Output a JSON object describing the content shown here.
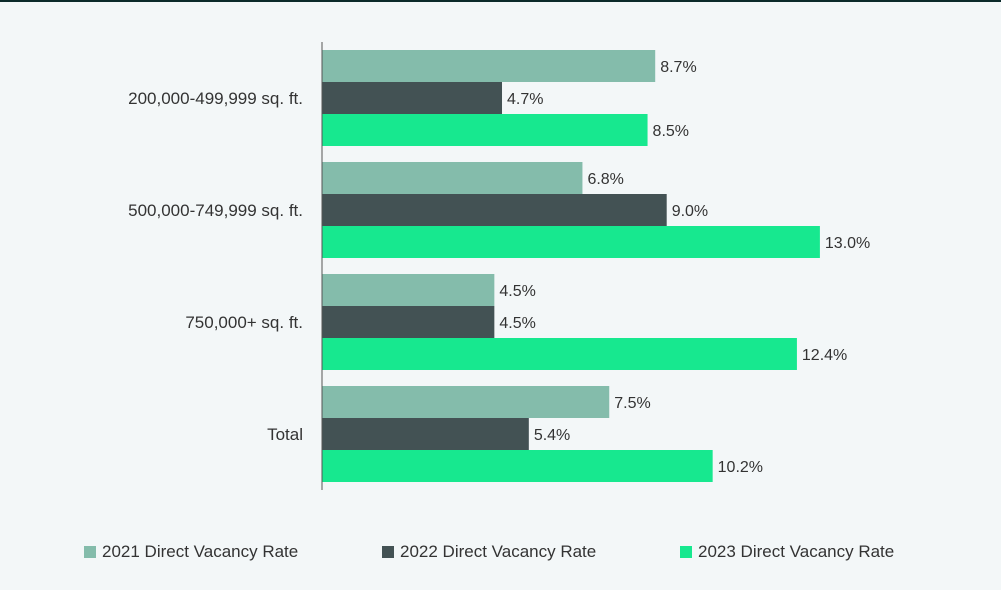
{
  "chart_data": {
    "type": "bar",
    "orientation": "horizontal",
    "categories": [
      "200,000-499,999 sq. ft.",
      "500,000-749,999 sq. ft.",
      "750,000+ sq. ft.",
      "Total"
    ],
    "series": [
      {
        "name": "2021 Direct Vacancy Rate",
        "color": "#84bcab",
        "values": [
          8.7,
          6.8,
          4.5,
          7.5
        ],
        "labels": [
          "8.7%",
          "6.8%",
          "4.5%",
          "7.5%"
        ]
      },
      {
        "name": "2022 Direct Vacancy Rate",
        "color": "#435254",
        "values": [
          4.7,
          9.0,
          4.5,
          5.4
        ],
        "labels": [
          "4.7%",
          "9.0%",
          "4.5%",
          "5.4%"
        ]
      },
      {
        "name": "2023 Direct Vacancy Rate",
        "color": "#17e88f",
        "values": [
          8.5,
          13.0,
          12.4,
          10.2
        ],
        "labels": [
          "8.5%",
          "13.0%",
          "12.4%",
          "10.2%"
        ]
      }
    ],
    "xlim": [
      0,
      16
    ],
    "grid": false,
    "legend_position": "bottom",
    "title": "",
    "xlabel": "",
    "ylabel": ""
  }
}
